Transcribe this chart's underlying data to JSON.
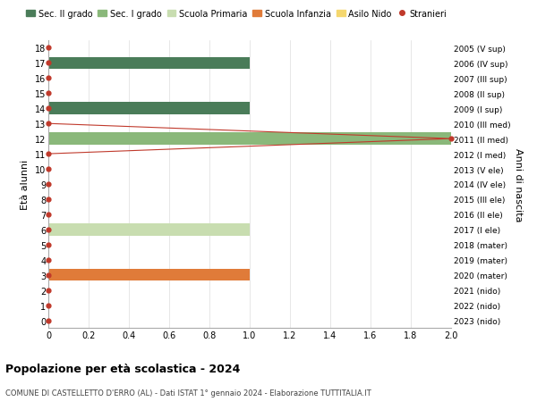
{
  "ages": [
    18,
    17,
    16,
    15,
    14,
    13,
    12,
    11,
    10,
    9,
    8,
    7,
    6,
    5,
    4,
    3,
    2,
    1,
    0
  ],
  "years": [
    "2005 (V sup)",
    "2006 (IV sup)",
    "2007 (III sup)",
    "2008 (II sup)",
    "2009 (I sup)",
    "2010 (III med)",
    "2011 (II med)",
    "2012 (I med)",
    "2013 (V ele)",
    "2014 (IV ele)",
    "2015 (III ele)",
    "2016 (II ele)",
    "2017 (I ele)",
    "2018 (mater)",
    "2019 (mater)",
    "2020 (mater)",
    "2021 (nido)",
    "2022 (nido)",
    "2023 (nido)"
  ],
  "bars": [
    {
      "age": 17,
      "value": 1.0,
      "color": "#4a7c59"
    },
    {
      "age": 14,
      "value": 1.0,
      "color": "#4a7c59"
    },
    {
      "age": 12,
      "value": 2.0,
      "color": "#8ab87a"
    },
    {
      "age": 6,
      "value": 1.0,
      "color": "#c8ddb0"
    },
    {
      "age": 3,
      "value": 1.0,
      "color": "#e07b39"
    }
  ],
  "stranieri_dots_all": [
    18,
    17,
    16,
    15,
    14,
    13,
    12,
    11,
    10,
    9,
    8,
    7,
    6,
    5,
    4,
    3,
    2,
    1,
    0
  ],
  "stranieri_dot_values": [
    0,
    0,
    0,
    0,
    0,
    0,
    2.0,
    0,
    0,
    0,
    0,
    0,
    0,
    0,
    0,
    0,
    0,
    0,
    0
  ],
  "stranieri_line_x": [
    0,
    0,
    2.0,
    0
  ],
  "stranieri_line_y": [
    13,
    13,
    12,
    11
  ],
  "color_sec2": "#4a7c59",
  "color_sec1": "#8ab87a",
  "color_prim": "#c8ddb0",
  "color_inf": "#e07b39",
  "color_nido": "#f5d76e",
  "color_str": "#c0392b",
  "xlim": [
    0,
    2.0
  ],
  "ylim": [
    -0.5,
    18.5
  ],
  "xticks": [
    0,
    0.2,
    0.4,
    0.6,
    0.8,
    1.0,
    1.2,
    1.4,
    1.6,
    1.8,
    2.0
  ],
  "xtick_labels": [
    "0",
    "0.2",
    "0.4",
    "0.6",
    "0.8",
    "1.0",
    "1.2",
    "1.4",
    "1.6",
    "1.8",
    "2.0"
  ],
  "bar_height": 0.8,
  "title": "Popolazione per età scolastica - 2024",
  "subtitle": "COMUNE DI CASTELLETTO D'ERRO (AL) - Dati ISTAT 1° gennaio 2024 - Elaborazione TUTTITALIA.IT",
  "ylabel_left": "Età alunni",
  "ylabel_right": "Anni di nascita",
  "legend_labels": [
    "Sec. II grado",
    "Sec. I grado",
    "Scuola Primaria",
    "Scuola Infanzia",
    "Asilo Nido",
    "Stranieri"
  ],
  "background_color": "#ffffff",
  "grid_color": "#dddddd"
}
